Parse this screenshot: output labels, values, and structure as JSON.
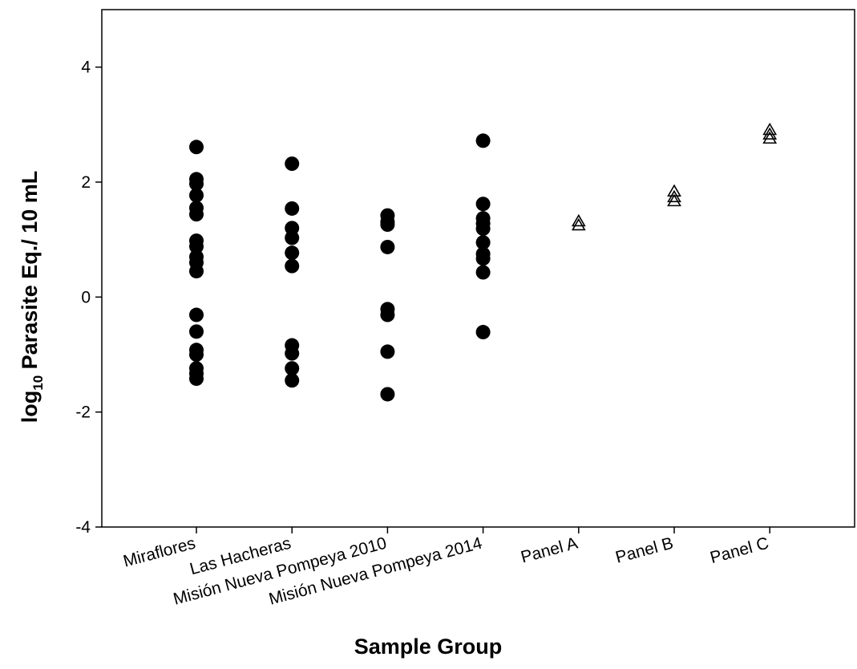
{
  "chart_data": {
    "type": "strip",
    "x_label": "Sample Group",
    "y_label": {
      "base": "log",
      "subscript": "10",
      "rest": " Parasite Eq./ 10 mL"
    },
    "categories": [
      "Miraflores",
      "Las Hacheras",
      "Misión Nueva Pompeya 2010",
      "Misión Nueva Pompeya 2014",
      "Panel A",
      "Panel B",
      "Panel C"
    ],
    "markers": [
      "filled-circle",
      "filled-circle",
      "filled-circle",
      "filled-circle",
      "open-triangle",
      "open-triangle",
      "open-triangle"
    ],
    "color": "#000000",
    "values": [
      [
        2.61,
        2.05,
        1.97,
        1.77,
        1.55,
        1.44,
        0.98,
        0.88,
        0.7,
        0.6,
        0.45,
        -0.31,
        -0.6,
        -0.92,
        -1.0,
        -1.24,
        -1.33,
        -1.42
      ],
      [
        2.32,
        1.54,
        1.2,
        1.03,
        0.77,
        0.54,
        -0.84,
        -0.98,
        -1.24,
        -1.45
      ],
      [
        1.42,
        1.31,
        1.26,
        0.87,
        -0.21,
        -0.31,
        -0.95,
        -1.69
      ],
      [
        2.72,
        1.62,
        1.37,
        1.28,
        1.19,
        0.95,
        0.75,
        0.67,
        0.43,
        -0.61
      ],
      [
        1.31,
        1.24
      ],
      [
        1.83,
        1.73,
        1.66
      ],
      [
        2.9,
        2.82,
        2.75
      ]
    ],
    "ylim": [
      -4,
      5
    ],
    "yticks": [
      -4,
      -2,
      0,
      2,
      4
    ],
    "grid": false
  }
}
